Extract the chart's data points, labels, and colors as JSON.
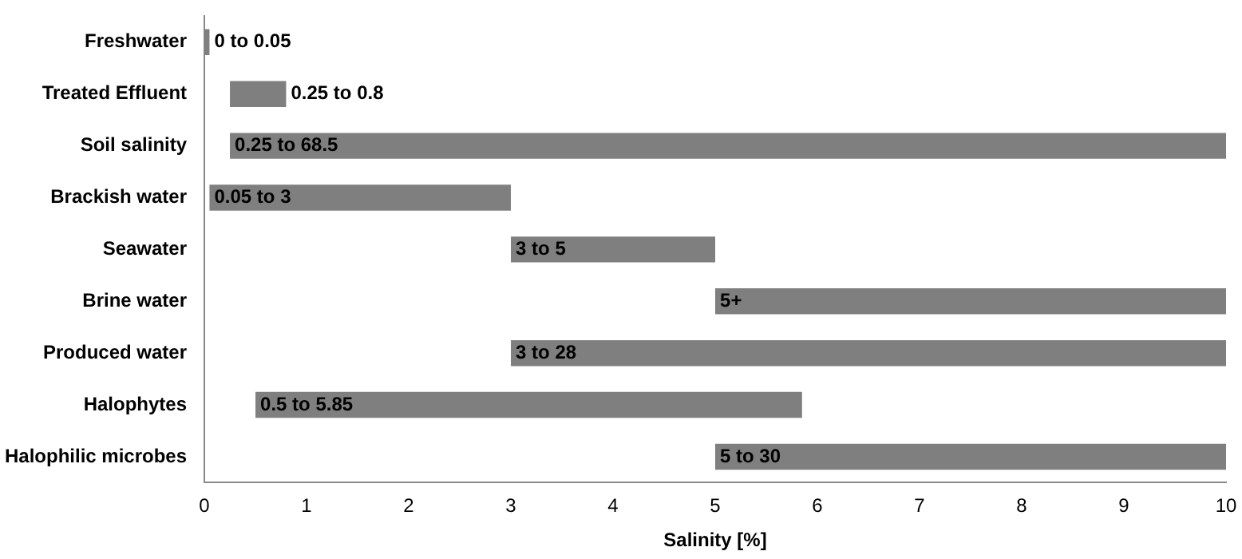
{
  "chart_data": {
    "type": "bar",
    "orientation": "horizontal",
    "xlabel": "Salinity [%]",
    "categories": [
      "Freshwater",
      "Treated Effluent",
      "Soil salinity",
      "Brackish water",
      "Seawater",
      "Brine water",
      "Produced water",
      "Halophytes",
      "Halophilic microbes"
    ],
    "base": [
      0,
      0.25,
      0.25,
      0.05,
      3,
      5,
      3,
      0.5,
      5
    ],
    "values": [
      0.05,
      0.55,
      9.75,
      2.95,
      2,
      5,
      7,
      5.35,
      5
    ],
    "annotations": [
      {
        "text": "0 to 0.05",
        "x": 0.05,
        "y": "Freshwater"
      },
      {
        "text": "0.25 to 0.8",
        "x": 0.8,
        "y": "Treated Effluent"
      },
      {
        "text": "0.25 to 68.5",
        "x": 0.25,
        "y": "Soil salinity"
      },
      {
        "text": "0.05 to 3",
        "x": 0.05,
        "y": "Brackish water"
      },
      {
        "text": "3 to 5",
        "x": 3,
        "y": "Seawater"
      },
      {
        "text": "5+",
        "x": 5,
        "y": "Brine water"
      },
      {
        "text": "3 to 28",
        "x": 3,
        "y": "Produced water"
      },
      {
        "text": "0.5 to 5.85",
        "x": 0.5,
        "y": "Halophytes"
      },
      {
        "text": "5 to 30",
        "x": 5,
        "y": "Halophilic microbes"
      }
    ],
    "color": "#7f7f7f",
    "xlim": [
      0,
      10
    ],
    "xticks": [
      0,
      1,
      2,
      3,
      4,
      5,
      6,
      7,
      8,
      9,
      10
    ],
    "grid": false,
    "legend": false
  }
}
